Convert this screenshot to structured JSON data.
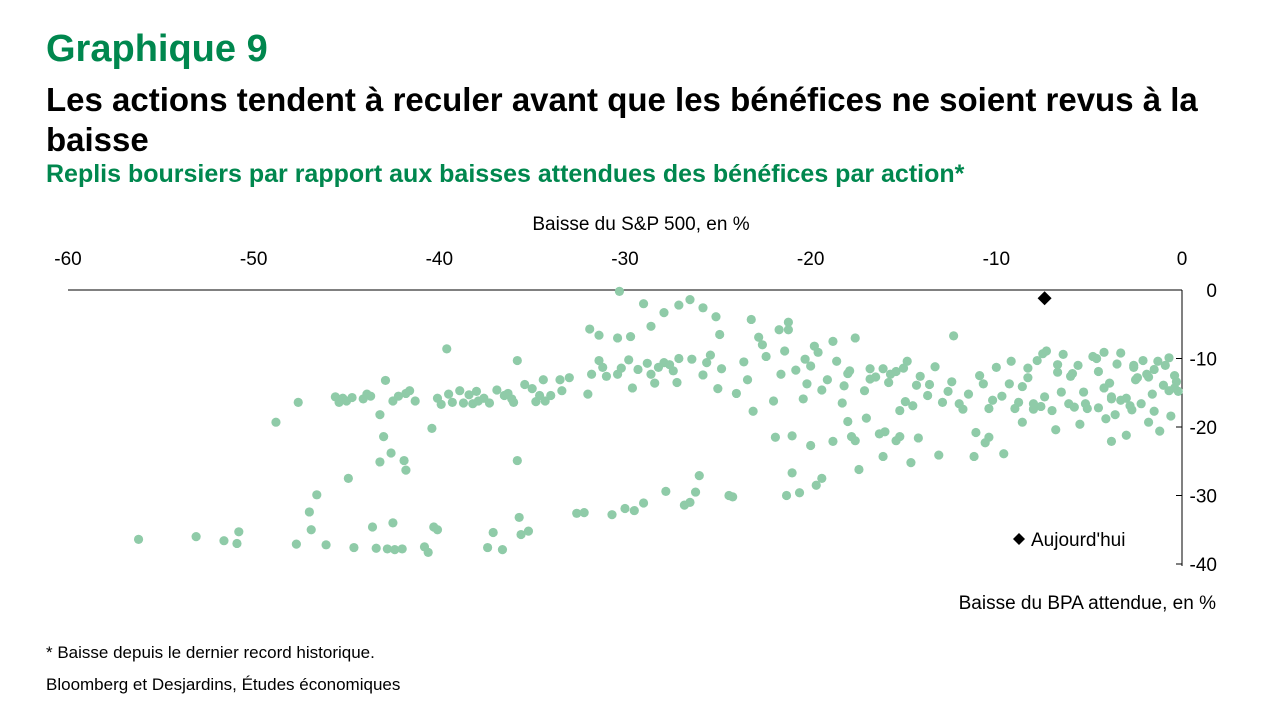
{
  "header": {
    "kicker": "Graphique 9",
    "title": "Les actions tendent à reculer avant que les bénéfices ne soient revus à la baisse",
    "subtitle": "Replis boursiers par rapport aux baisses attendues des bénéfices par action*"
  },
  "footer": {
    "note": "* Baisse depuis le dernier record historique.",
    "source": "Bloomberg et Desjardins, Études économiques"
  },
  "colors": {
    "accent_green": "#00874e",
    "points": "#8fcba8",
    "today": "#000000"
  },
  "chart_data": {
    "type": "scatter",
    "xlabel": "Baisse du S&P 500, en %",
    "ylabel": "Baisse du BPA attendue, en %",
    "xlim": [
      -60,
      0
    ],
    "ylim": [
      -40,
      0
    ],
    "x_axis_position": "top",
    "y_axis_position": "right",
    "xticks": [
      -60,
      -50,
      -40,
      -30,
      -20,
      -10,
      0
    ],
    "yticks": [
      0,
      -10,
      -20,
      -30,
      -40
    ],
    "xtick_labels": [
      "-60",
      "-50",
      "-40",
      "-30",
      "-20",
      "-10",
      "0"
    ],
    "ytick_labels": [
      "0",
      "-10",
      "-20",
      "-30",
      "-40"
    ],
    "grid": false,
    "legend_position": "bottom-right",
    "series": [
      {
        "marker": "circle",
        "color": "#8fcba8",
        "points": [
          [
            -56.2,
            -36.4
          ],
          [
            -53.1,
            -36.0
          ],
          [
            -51.6,
            -36.6
          ],
          [
            -50.9,
            -37.0
          ],
          [
            -50.8,
            -35.3
          ],
          [
            -48.8,
            -19.3
          ],
          [
            -47.6,
            -16.4
          ],
          [
            -47.7,
            -37.1
          ],
          [
            -47.0,
            -32.4
          ],
          [
            -46.9,
            -35.0
          ],
          [
            -46.6,
            -29.9
          ],
          [
            -46.1,
            -37.2
          ],
          [
            -45.6,
            -15.6
          ],
          [
            -45.4,
            -16.4
          ],
          [
            -45.2,
            -15.8
          ],
          [
            -45.0,
            -16.2
          ],
          [
            -44.9,
            -27.5
          ],
          [
            -44.7,
            -15.7
          ],
          [
            -44.6,
            -37.6
          ],
          [
            -44.1,
            -15.9
          ],
          [
            -43.9,
            -15.2
          ],
          [
            -43.7,
            -15.5
          ],
          [
            -43.6,
            -34.6
          ],
          [
            -43.4,
            -37.7
          ],
          [
            -43.2,
            -18.2
          ],
          [
            -43.2,
            -25.1
          ],
          [
            -43.0,
            -21.4
          ],
          [
            -42.9,
            -13.2
          ],
          [
            -42.8,
            -37.8
          ],
          [
            -42.6,
            -23.8
          ],
          [
            -42.5,
            -34.0
          ],
          [
            -42.5,
            -16.2
          ],
          [
            -42.4,
            -37.9
          ],
          [
            -42.2,
            -15.5
          ],
          [
            -42.0,
            -37.8
          ],
          [
            -41.9,
            -24.9
          ],
          [
            -41.8,
            -26.3
          ],
          [
            -41.8,
            -15.1
          ],
          [
            -41.6,
            -14.7
          ],
          [
            -41.3,
            -16.2
          ],
          [
            -40.8,
            -37.5
          ],
          [
            -40.6,
            -38.3
          ],
          [
            -40.4,
            -20.2
          ],
          [
            -40.3,
            -34.6
          ],
          [
            -40.1,
            -35.0
          ],
          [
            -40.1,
            -15.8
          ],
          [
            -39.9,
            -16.7
          ],
          [
            -39.6,
            -8.6
          ],
          [
            -39.5,
            -15.2
          ],
          [
            -39.3,
            -16.4
          ],
          [
            -38.9,
            -14.7
          ],
          [
            -38.7,
            -16.5
          ],
          [
            -38.4,
            -15.3
          ],
          [
            -38.2,
            -16.6
          ],
          [
            -38.0,
            -14.8
          ],
          [
            -37.9,
            -16.2
          ],
          [
            -37.6,
            -15.8
          ],
          [
            -37.4,
            -37.6
          ],
          [
            -37.3,
            -16.5
          ],
          [
            -37.1,
            -35.4
          ],
          [
            -36.9,
            -14.6
          ],
          [
            -36.6,
            -37.9
          ],
          [
            -36.5,
            -15.4
          ],
          [
            -36.3,
            -15.1
          ],
          [
            -36.1,
            -15.9
          ],
          [
            -36.0,
            -16.4
          ],
          [
            -35.8,
            -10.3
          ],
          [
            -35.8,
            -24.9
          ],
          [
            -35.7,
            -33.2
          ],
          [
            -35.6,
            -35.7
          ],
          [
            -35.4,
            -13.8
          ],
          [
            -35.2,
            -35.2
          ],
          [
            -35.0,
            -14.4
          ],
          [
            -34.8,
            -16.3
          ],
          [
            -34.6,
            -15.4
          ],
          [
            -34.4,
            -13.1
          ],
          [
            -34.3,
            -16.2
          ],
          [
            -34.0,
            -15.4
          ],
          [
            -33.5,
            -13.1
          ],
          [
            -33.4,
            -14.7
          ],
          [
            -33.0,
            -12.8
          ],
          [
            -32.6,
            -32.6
          ],
          [
            -32.2,
            -32.5
          ],
          [
            -32.0,
            -15.2
          ],
          [
            -31.8,
            -12.3
          ],
          [
            -31.4,
            -10.3
          ],
          [
            -31.2,
            -11.3
          ],
          [
            -31.0,
            -12.6
          ],
          [
            -30.7,
            -32.8
          ],
          [
            -30.4,
            -12.3
          ],
          [
            -30.2,
            -11.4
          ],
          [
            -30.0,
            -31.9
          ],
          [
            -29.8,
            -10.2
          ],
          [
            -29.6,
            -14.3
          ],
          [
            -29.5,
            -32.2
          ],
          [
            -29.3,
            -11.6
          ],
          [
            -29.0,
            -31.1
          ],
          [
            -28.8,
            -10.7
          ],
          [
            -28.6,
            -12.3
          ],
          [
            -28.4,
            -13.6
          ],
          [
            -28.2,
            -11.3
          ],
          [
            -27.9,
            -10.6
          ],
          [
            -27.8,
            -29.4
          ],
          [
            -27.6,
            -10.9
          ],
          [
            -27.4,
            -11.8
          ],
          [
            -27.2,
            -13.5
          ],
          [
            -27.1,
            -10.0
          ],
          [
            -26.8,
            -31.4
          ],
          [
            -26.5,
            -31.0
          ],
          [
            -26.4,
            -10.1
          ],
          [
            -26.2,
            -29.5
          ],
          [
            -26.0,
            -27.1
          ],
          [
            -25.8,
            -12.4
          ],
          [
            -25.6,
            -10.6
          ],
          [
            -25.4,
            -9.5
          ],
          [
            -25.0,
            -14.4
          ],
          [
            -24.8,
            -11.5
          ],
          [
            -24.4,
            -30.0
          ],
          [
            -24.2,
            -30.2
          ],
          [
            -24.0,
            -15.1
          ],
          [
            -23.6,
            -10.5
          ],
          [
            -23.4,
            -13.1
          ],
          [
            -23.1,
            -17.7
          ],
          [
            -22.8,
            -6.9
          ],
          [
            -22.6,
            -8.0
          ],
          [
            -22.4,
            -9.7
          ],
          [
            -22.0,
            -16.2
          ],
          [
            -21.9,
            -21.5
          ],
          [
            -21.6,
            -12.3
          ],
          [
            -21.4,
            -8.9
          ],
          [
            -21.3,
            -30.0
          ],
          [
            -21.2,
            -5.8
          ],
          [
            -21.0,
            -26.7
          ],
          [
            -21.0,
            -21.3
          ],
          [
            -20.8,
            -11.7
          ],
          [
            -20.6,
            -29.6
          ],
          [
            -20.4,
            -15.9
          ],
          [
            -20.2,
            -13.7
          ],
          [
            -20.0,
            -22.7
          ],
          [
            -20.0,
            -11.1
          ],
          [
            -19.8,
            -8.2
          ],
          [
            -19.7,
            -28.5
          ],
          [
            -19.4,
            -14.6
          ],
          [
            -19.4,
            -27.5
          ],
          [
            -19.1,
            -13.1
          ],
          [
            -18.8,
            -7.5
          ],
          [
            -18.6,
            -10.4
          ],
          [
            -18.3,
            -16.5
          ],
          [
            -18.2,
            -14.0
          ],
          [
            -18.0,
            -12.2
          ],
          [
            -17.8,
            -21.4
          ],
          [
            -17.6,
            -7.0
          ],
          [
            -17.4,
            -26.2
          ],
          [
            -17.1,
            -14.7
          ],
          [
            -16.8,
            -11.5
          ],
          [
            -16.8,
            -13.0
          ],
          [
            -16.5,
            -12.7
          ],
          [
            -16.1,
            -24.3
          ],
          [
            -16.0,
            -20.7
          ],
          [
            -15.8,
            -13.5
          ],
          [
            -15.7,
            -12.3
          ],
          [
            -15.4,
            -11.9
          ],
          [
            -15.2,
            -21.4
          ],
          [
            -15.2,
            -17.6
          ],
          [
            -14.9,
            -16.3
          ],
          [
            -14.8,
            -10.4
          ],
          [
            -14.6,
            -25.2
          ],
          [
            -14.5,
            -16.9
          ],
          [
            -14.3,
            -13.9
          ],
          [
            -14.1,
            -12.6
          ],
          [
            -13.7,
            -15.4
          ],
          [
            -13.6,
            -13.8
          ],
          [
            -13.3,
            -11.2
          ],
          [
            -13.1,
            -24.1
          ],
          [
            -12.9,
            -16.4
          ],
          [
            -12.6,
            -14.8
          ],
          [
            -12.4,
            -13.4
          ],
          [
            -12.3,
            -6.7
          ],
          [
            -12.0,
            -16.6
          ],
          [
            -11.8,
            -17.4
          ],
          [
            -11.5,
            -15.2
          ],
          [
            -11.2,
            -24.3
          ],
          [
            -11.1,
            -20.8
          ],
          [
            -10.9,
            -12.5
          ],
          [
            -10.7,
            -13.7
          ],
          [
            -10.4,
            -17.3
          ],
          [
            -10.2,
            -16.1
          ],
          [
            -10.0,
            -11.3
          ],
          [
            -9.7,
            -15.5
          ],
          [
            -9.6,
            -23.9
          ],
          [
            -9.3,
            -13.7
          ],
          [
            -9.2,
            -10.4
          ],
          [
            -9.0,
            -17.3
          ],
          [
            -8.8,
            -16.4
          ],
          [
            -8.6,
            -14.1
          ],
          [
            -8.6,
            -19.3
          ],
          [
            -8.3,
            -12.8
          ],
          [
            -8.0,
            -17.4
          ],
          [
            -7.8,
            -10.3
          ],
          [
            -7.6,
            -17.0
          ],
          [
            -7.4,
            -15.6
          ],
          [
            -7.3,
            -8.9
          ],
          [
            -7.0,
            -17.6
          ],
          [
            -6.8,
            -20.4
          ],
          [
            -6.7,
            -10.9
          ],
          [
            -6.5,
            -14.9
          ],
          [
            -6.4,
            -9.4
          ],
          [
            -6.1,
            -16.6
          ],
          [
            -6.0,
            -12.6
          ],
          [
            -5.8,
            -17.1
          ],
          [
            -5.6,
            -11.0
          ],
          [
            -5.5,
            -19.6
          ],
          [
            -5.2,
            -16.6
          ],
          [
            -5.1,
            -17.3
          ],
          [
            -4.8,
            -9.7
          ],
          [
            -4.6,
            -10.0
          ],
          [
            -4.5,
            -17.2
          ],
          [
            -4.2,
            -9.1
          ],
          [
            -4.2,
            -14.3
          ],
          [
            -3.9,
            -13.6
          ],
          [
            -3.8,
            -15.6
          ],
          [
            -3.6,
            -18.2
          ],
          [
            -3.3,
            -9.2
          ],
          [
            -3.3,
            -16.1
          ],
          [
            -3.0,
            -15.8
          ],
          [
            -2.8,
            -16.9
          ],
          [
            -2.6,
            -11.0
          ],
          [
            -2.5,
            -13.1
          ],
          [
            -2.2,
            -16.6
          ],
          [
            -1.9,
            -12.3
          ],
          [
            -1.8,
            -19.3
          ],
          [
            -1.5,
            -17.7
          ],
          [
            -1.2,
            -20.6
          ],
          [
            -1.0,
            -13.9
          ],
          [
            -0.7,
            -14.7
          ],
          [
            -0.6,
            -18.4
          ],
          [
            -0.4,
            -12.5
          ],
          [
            -0.2,
            -14.8
          ],
          [
            -8.0,
            -16.6
          ],
          [
            -8.3,
            -11.4
          ],
          [
            -7.5,
            -9.3
          ],
          [
            -6.7,
            -12.0
          ],
          [
            -5.9,
            -12.2
          ],
          [
            -5.3,
            -14.9
          ],
          [
            -10.4,
            -21.5
          ],
          [
            -10.6,
            -22.3
          ],
          [
            -14.2,
            -21.6
          ],
          [
            -15.4,
            -22.0
          ],
          [
            -17.0,
            -18.7
          ],
          [
            -17.6,
            -22.0
          ],
          [
            -16.3,
            -21.0
          ],
          [
            -18.8,
            -22.1
          ],
          [
            -18.0,
            -19.2
          ],
          [
            -16.1,
            -11.5
          ],
          [
            -15.0,
            -11.4
          ],
          [
            -17.9,
            -11.8
          ],
          [
            -19.6,
            -9.1
          ],
          [
            -20.3,
            -10.1
          ],
          [
            -21.2,
            -4.7
          ],
          [
            -21.7,
            -5.8
          ],
          [
            -23.2,
            -4.3
          ],
          [
            -24.9,
            -6.5
          ],
          [
            -25.1,
            -3.9
          ],
          [
            -25.8,
            -2.6
          ],
          [
            -26.5,
            -1.4
          ],
          [
            -27.1,
            -2.2
          ],
          [
            -27.9,
            -3.3
          ],
          [
            -28.6,
            -5.3
          ],
          [
            -29.0,
            -2.0
          ],
          [
            -29.7,
            -6.8
          ],
          [
            -30.4,
            -7.0
          ],
          [
            -31.4,
            -6.6
          ],
          [
            -31.9,
            -5.7
          ],
          [
            -30.3,
            -0.2
          ],
          [
            -4.5,
            -11.9
          ],
          [
            -4.1,
            -18.8
          ],
          [
            -3.8,
            -22.1
          ],
          [
            -3.0,
            -21.2
          ],
          [
            -3.5,
            -10.8
          ],
          [
            -3.8,
            -15.9
          ],
          [
            -2.7,
            -17.5
          ],
          [
            -1.6,
            -15.2
          ],
          [
            -1.3,
            -10.4
          ],
          [
            -0.7,
            -9.9
          ],
          [
            -0.4,
            -14.3
          ],
          [
            -0.3,
            -13.4
          ],
          [
            -1.8,
            -12.7
          ],
          [
            -2.4,
            -12.8
          ],
          [
            -2.6,
            -11.3
          ],
          [
            -2.1,
            -10.3
          ],
          [
            -1.5,
            -11.6
          ],
          [
            -0.9,
            -11.0
          ]
        ]
      },
      {
        "name": "Aujourd'hui",
        "marker": "diamond",
        "color": "#000000",
        "points": [
          [
            -7.4,
            -1.2
          ]
        ]
      }
    ]
  }
}
